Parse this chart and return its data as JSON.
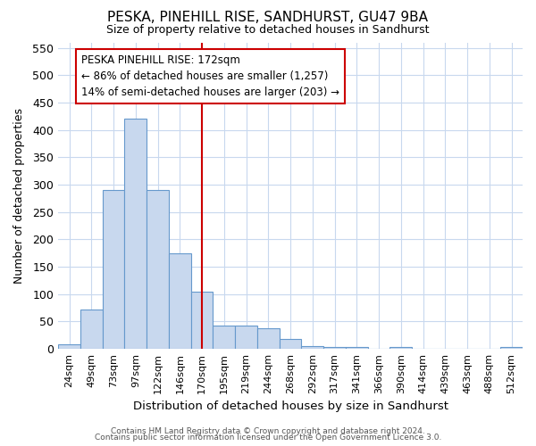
{
  "title": "PESKA, PINEHILL RISE, SANDHURST, GU47 9BA",
  "subtitle": "Size of property relative to detached houses in Sandhurst",
  "xlabel": "Distribution of detached houses by size in Sandhurst",
  "ylabel": "Number of detached properties",
  "footer_line1": "Contains HM Land Registry data © Crown copyright and database right 2024.",
  "footer_line2": "Contains public sector information licensed under the Open Government Licence 3.0.",
  "bin_labels": [
    "24sqm",
    "49sqm",
    "73sqm",
    "97sqm",
    "122sqm",
    "146sqm",
    "170sqm",
    "195sqm",
    "219sqm",
    "244sqm",
    "268sqm",
    "292sqm",
    "317sqm",
    "341sqm",
    "366sqm",
    "390sqm",
    "414sqm",
    "439sqm",
    "463sqm",
    "488sqm",
    "512sqm"
  ],
  "bar_values": [
    8,
    72,
    290,
    420,
    290,
    175,
    105,
    43,
    43,
    38,
    18,
    5,
    3,
    3,
    0,
    3,
    0,
    0,
    0,
    0,
    4
  ],
  "bar_color": "#c8d8ee",
  "bar_edge_color": "#6699cc",
  "vline_color": "#cc0000",
  "annotation_text_line1": "PESKA PINEHILL RISE: 172sqm",
  "annotation_text_line2": "← 86% of detached houses are smaller (1,257)",
  "annotation_text_line3": "14% of semi-detached houses are larger (203) →",
  "annotation_box_color": "white",
  "annotation_box_edge": "#cc0000",
  "ylim": [
    0,
    560
  ],
  "yticks": [
    0,
    50,
    100,
    150,
    200,
    250,
    300,
    350,
    400,
    450,
    500,
    550
  ],
  "fig_bg": "white",
  "plot_bg": "white",
  "grid_color": "#c8d8ee"
}
